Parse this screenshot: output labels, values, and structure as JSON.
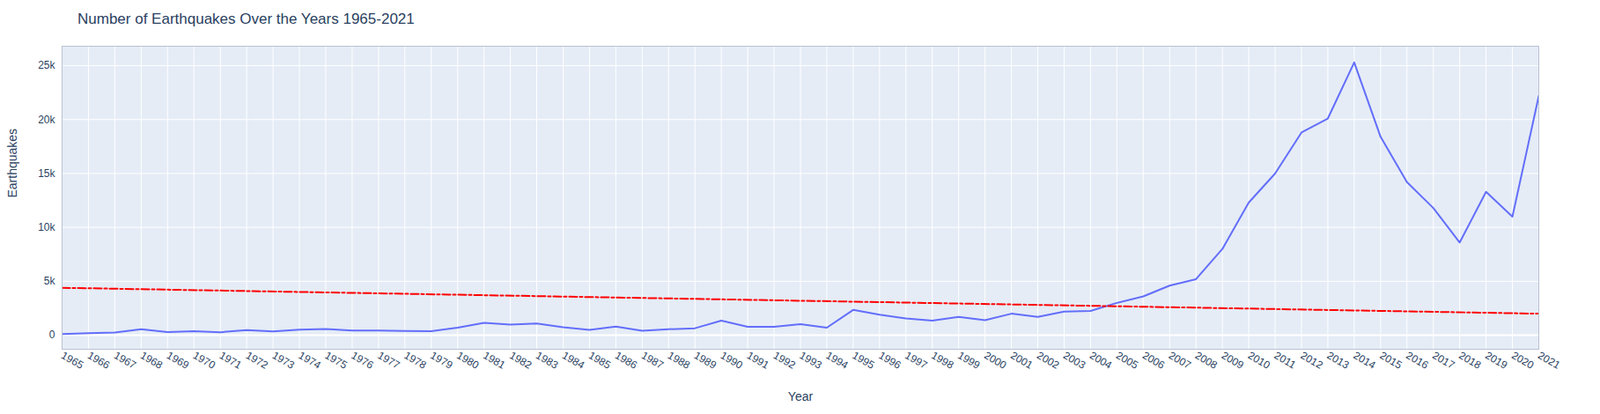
{
  "chart_data": {
    "type": "line",
    "title": "Number of Earthquakes Over the Years 1965-2021",
    "xlabel": "Year",
    "ylabel": "Earthquakes",
    "x": [
      1965,
      1966,
      1967,
      1968,
      1969,
      1970,
      1971,
      1972,
      1973,
      1974,
      1975,
      1976,
      1977,
      1978,
      1979,
      1980,
      1981,
      1982,
      1983,
      1984,
      1985,
      1986,
      1987,
      1988,
      1989,
      1990,
      1991,
      1992,
      1993,
      1994,
      1995,
      1996,
      1997,
      1998,
      1999,
      2000,
      2001,
      2002,
      2003,
      2004,
      2005,
      2006,
      2007,
      2008,
      2009,
      2010,
      2011,
      2012,
      2013,
      2014,
      2015,
      2016,
      2017,
      2018,
      2019,
      2020,
      2021
    ],
    "series": [
      {
        "color": "#636efa",
        "line_style": "solid",
        "values": [
          100,
          200,
          250,
          550,
          300,
          380,
          280,
          480,
          350,
          520,
          580,
          440,
          430,
          400,
          380,
          700,
          1150,
          980,
          1080,
          740,
          500,
          800,
          420,
          560,
          650,
          1350,
          780,
          780,
          1030,
          700,
          2350,
          1900,
          1550,
          1350,
          1700,
          1400,
          2000,
          1700,
          2200,
          2250,
          3000,
          3600,
          4600,
          5200,
          8000,
          12300,
          15000,
          18800,
          20100,
          25300,
          18400,
          14200,
          11800,
          8600,
          13300,
          11000,
          22200
        ]
      },
      {
        "color": "red",
        "line_style": "dashdot",
        "x": [
          1965,
          2021
        ],
        "values": [
          4400,
          2000
        ]
      }
    ],
    "xlim": [
      1965,
      2021
    ],
    "xticks": [
      1965,
      1966,
      1967,
      1968,
      1969,
      1970,
      1971,
      1972,
      1973,
      1974,
      1975,
      1976,
      1977,
      1978,
      1979,
      1980,
      1981,
      1982,
      1983,
      1984,
      1985,
      1986,
      1987,
      1988,
      1989,
      1990,
      1991,
      1992,
      1993,
      1994,
      1995,
      1996,
      1997,
      1998,
      1999,
      2000,
      2001,
      2002,
      2003,
      2004,
      2005,
      2006,
      2007,
      2008,
      2009,
      2010,
      2011,
      2012,
      2013,
      2014,
      2015,
      2016,
      2017,
      2018,
      2019,
      2020,
      2021
    ],
    "ylim": [
      -1300,
      26800
    ],
    "yticks": [
      0,
      {
        "value": 5000,
        "label": "5k"
      },
      {
        "value": 10000,
        "label": "10k"
      },
      {
        "value": 15000,
        "label": "15k"
      },
      {
        "value": 20000,
        "label": "20k"
      },
      {
        "value": 25000,
        "label": "25k"
      }
    ],
    "grid": true
  }
}
